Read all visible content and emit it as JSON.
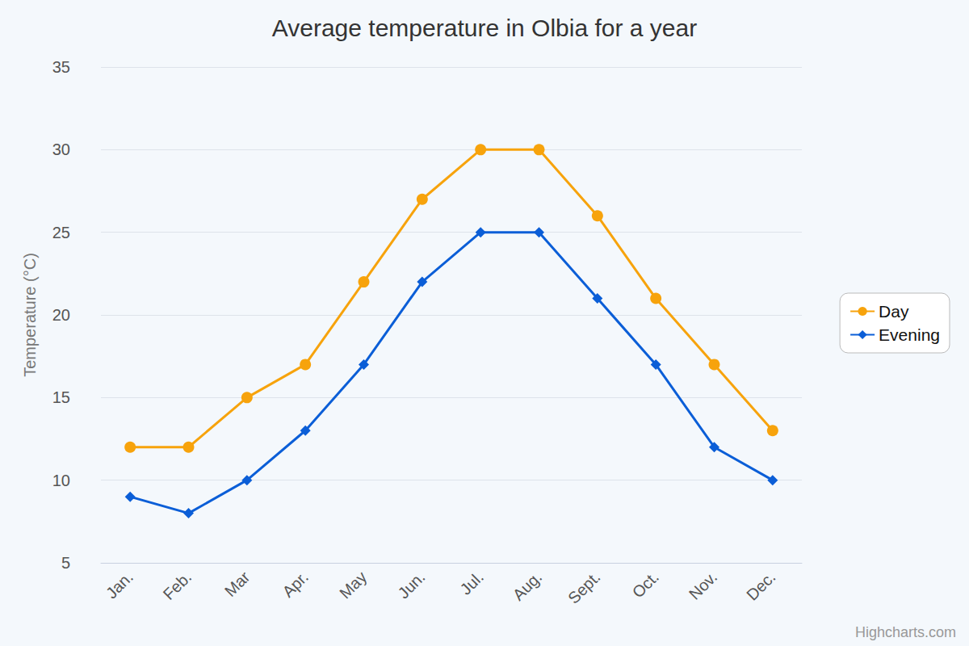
{
  "chart_data": {
    "type": "line",
    "title": "Average temperature in Olbia for a year",
    "y_label": "Temperature (°C)",
    "categories": [
      "Jan.",
      "Feb.",
      "Mar",
      "Apr.",
      "May",
      "Jun.",
      "Jul.",
      "Aug.",
      "Sept.",
      "Oct.",
      "Nov.",
      "Dec."
    ],
    "series": [
      {
        "name": "Day",
        "color": "#f7a30c",
        "marker": "circle",
        "line_style": "solid",
        "values": [
          12,
          12,
          15,
          17,
          22,
          27,
          30,
          30,
          26,
          21,
          17,
          13
        ]
      },
      {
        "name": "Evening",
        "color": "#0b5ed7",
        "marker": "diamond",
        "line_style": "solid",
        "values": [
          9,
          8,
          10,
          13,
          17,
          22,
          25,
          25,
          21,
          17,
          12,
          10
        ]
      }
    ],
    "ylim": [
      5,
      35
    ],
    "yticks": [
      5,
      10,
      15,
      20,
      25,
      30,
      35
    ],
    "grid": true,
    "legend": "right",
    "annotations": [
      "Highcharts.com"
    ]
  }
}
